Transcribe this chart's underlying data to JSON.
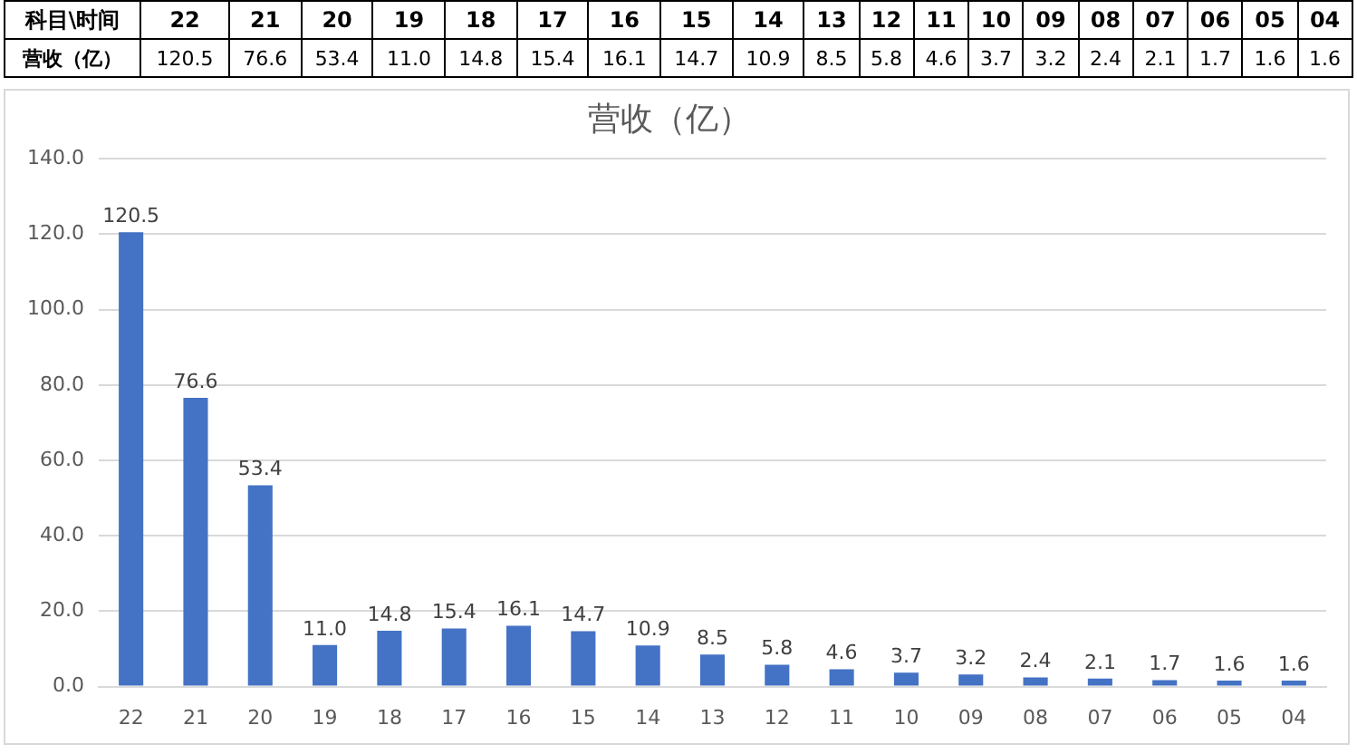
{
  "chart_data": {
    "type": "bar",
    "title": "营收（亿）",
    "categories": [
      "22",
      "21",
      "20",
      "19",
      "18",
      "17",
      "16",
      "15",
      "14",
      "13",
      "12",
      "11",
      "10",
      "09",
      "08",
      "07",
      "06",
      "05",
      "04"
    ],
    "values": [
      120.5,
      76.6,
      53.4,
      11.0,
      14.8,
      15.4,
      16.1,
      14.7,
      10.9,
      8.5,
      5.8,
      4.6,
      3.7,
      3.2,
      2.4,
      2.1,
      1.7,
      1.6,
      1.6
    ],
    "value_labels": [
      "120.5",
      "76.6",
      "53.4",
      "11.0",
      "14.8",
      "15.4",
      "16.1",
      "14.7",
      "10.9",
      "8.5",
      "5.8",
      "4.6",
      "3.7",
      "3.2",
      "2.4",
      "2.1",
      "1.7",
      "1.6",
      "1.6"
    ],
    "color": "#4472c4",
    "ylim": [
      0,
      140
    ],
    "yticks": [
      {
        "value": 0,
        "label": "0.0"
      },
      {
        "value": 20,
        "label": "20.0"
      },
      {
        "value": 40,
        "label": "40.0"
      },
      {
        "value": 60,
        "label": "60.0"
      },
      {
        "value": 80,
        "label": "80.0"
      },
      {
        "value": 100,
        "label": "100.0"
      },
      {
        "value": 120,
        "label": "120.0"
      },
      {
        "value": 140,
        "label": "140.0"
      }
    ],
    "grid": "y",
    "legend": false,
    "annotations": [
      "科目\\时间",
      "营收（亿）"
    ]
  }
}
